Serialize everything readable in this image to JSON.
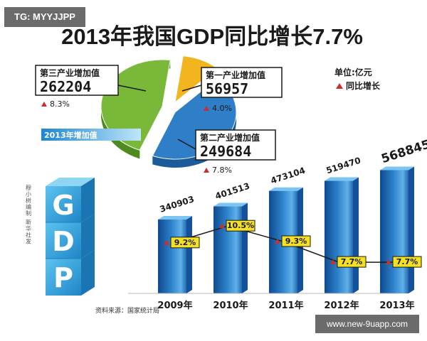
{
  "title": "2013年我国GDP同比增长7.7%",
  "watermark_top": "TG: MYYJJPP",
  "watermark_bottom": "www.new-9uapp.com",
  "legend": {
    "unit": "单位:亿元",
    "growth": "同比增长"
  },
  "pie_tag": "2013年增加值",
  "gdp_letters": [
    "G",
    "D",
    "P"
  ],
  "credit": "穆小树编制 新华社发",
  "source": "资料来源：国家统计局",
  "colors": {
    "title": "#1a1a1a",
    "bar": "#2b7fc8",
    "bar_dark": "#14519a",
    "pie_green": "#7ab83a",
    "pie_yellow": "#f2b51d",
    "pie_blue": "#2e7ec8",
    "marker": "#c8312a",
    "label_box": "#f6e11f",
    "cube": "#3aa5dc"
  },
  "chart_data": [
    {
      "type": "pie",
      "title": "2013年增加值",
      "slices": [
        {
          "name": "第三产业增加值",
          "value": 262204,
          "growth": "8.3%"
        },
        {
          "name": "第一产业增加值",
          "value": 56957,
          "growth": "4.0%"
        },
        {
          "name": "第二产业增加值",
          "value": 249684,
          "growth": "7.8%"
        }
      ]
    },
    {
      "type": "bar",
      "categories": [
        "2009年",
        "2010年",
        "2011年",
        "2012年",
        "2013年"
      ],
      "series": [
        {
          "name": "",
          "values": [
            340903,
            401513,
            473104,
            519470,
            568845
          ]
        }
      ],
      "value_labels": [
        "340903",
        "401513",
        "473104",
        "519470",
        "568845"
      ],
      "ylim": [
        0,
        600000
      ]
    },
    {
      "type": "line",
      "categories": [
        "2009年",
        "2010年",
        "2011年",
        "2012年",
        "2013年"
      ],
      "series": [
        {
          "name": "同比增长",
          "values": [
            9.2,
            10.5,
            9.3,
            7.7,
            7.7
          ]
        }
      ],
      "value_labels": [
        "9.2%",
        "10.5%",
        "9.3%",
        "7.7%",
        "7.7%"
      ]
    }
  ]
}
